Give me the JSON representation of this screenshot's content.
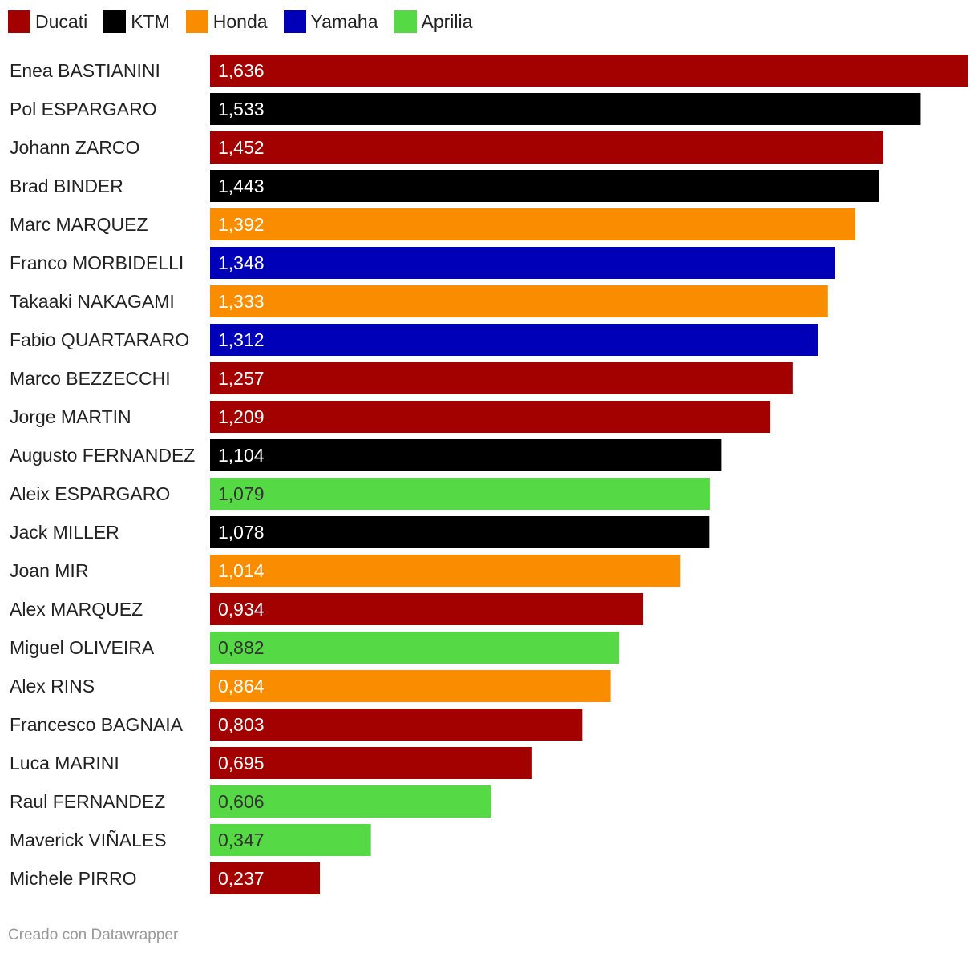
{
  "chart_data": {
    "type": "bar",
    "orientation": "horizontal",
    "title": "",
    "xlabel": "",
    "ylabel": "",
    "xlim": [
      0,
      1.636
    ],
    "grid": false,
    "legend_position": "top-left",
    "legend": [
      {
        "name": "Ducati",
        "color": "#a30000"
      },
      {
        "name": "KTM",
        "color": "#000000"
      },
      {
        "name": "Honda",
        "color": "#fa8c00"
      },
      {
        "name": "Yamaha",
        "color": "#0000b8"
      },
      {
        "name": "Aprilia",
        "color": "#55d945"
      }
    ],
    "bars": [
      {
        "category": "Enea BASTIANINI",
        "value": 1.636,
        "label": "1,636",
        "team": "Ducati"
      },
      {
        "category": "Pol ESPARGARO",
        "value": 1.533,
        "label": "1,533",
        "team": "KTM"
      },
      {
        "category": "Johann ZARCO",
        "value": 1.452,
        "label": "1,452",
        "team": "Ducati"
      },
      {
        "category": "Brad BINDER",
        "value": 1.443,
        "label": "1,443",
        "team": "KTM"
      },
      {
        "category": "Marc MARQUEZ",
        "value": 1.392,
        "label": "1,392",
        "team": "Honda"
      },
      {
        "category": "Franco MORBIDELLI",
        "value": 1.348,
        "label": "1,348",
        "team": "Yamaha"
      },
      {
        "category": "Takaaki NAKAGAMI",
        "value": 1.333,
        "label": "1,333",
        "team": "Honda"
      },
      {
        "category": "Fabio QUARTARARO",
        "value": 1.312,
        "label": "1,312",
        "team": "Yamaha"
      },
      {
        "category": "Marco BEZZECCHI",
        "value": 1.257,
        "label": "1,257",
        "team": "Ducati"
      },
      {
        "category": "Jorge MARTIN",
        "value": 1.209,
        "label": "1,209",
        "team": "Ducati"
      },
      {
        "category": "Augusto FERNANDEZ",
        "value": 1.104,
        "label": "1,104",
        "team": "KTM"
      },
      {
        "category": "Aleix ESPARGARO",
        "value": 1.079,
        "label": "1,079",
        "team": "Aprilia"
      },
      {
        "category": "Jack MILLER",
        "value": 1.078,
        "label": "1,078",
        "team": "KTM"
      },
      {
        "category": "Joan MIR",
        "value": 1.014,
        "label": "1,014",
        "team": "Honda"
      },
      {
        "category": "Alex MARQUEZ",
        "value": 0.934,
        "label": "0,934",
        "team": "Ducati"
      },
      {
        "category": "Miguel OLIVEIRA",
        "value": 0.882,
        "label": "0,882",
        "team": "Aprilia"
      },
      {
        "category": "Alex RINS",
        "value": 0.864,
        "label": "0,864",
        "team": "Honda"
      },
      {
        "category": "Francesco BAGNAIA",
        "value": 0.803,
        "label": "0,803",
        "team": "Ducati"
      },
      {
        "category": "Luca MARINI",
        "value": 0.695,
        "label": "0,695",
        "team": "Ducati"
      },
      {
        "category": "Raul FERNANDEZ",
        "value": 0.606,
        "label": "0,606",
        "team": "Aprilia"
      },
      {
        "category": "Maverick VIÑALES",
        "value": 0.347,
        "label": "0,347",
        "team": "Aprilia"
      },
      {
        "category": "Michele PIRRO",
        "value": 0.237,
        "label": "0,237",
        "team": "Ducati"
      }
    ]
  },
  "footer": {
    "credit": "Creado con Datawrapper"
  }
}
